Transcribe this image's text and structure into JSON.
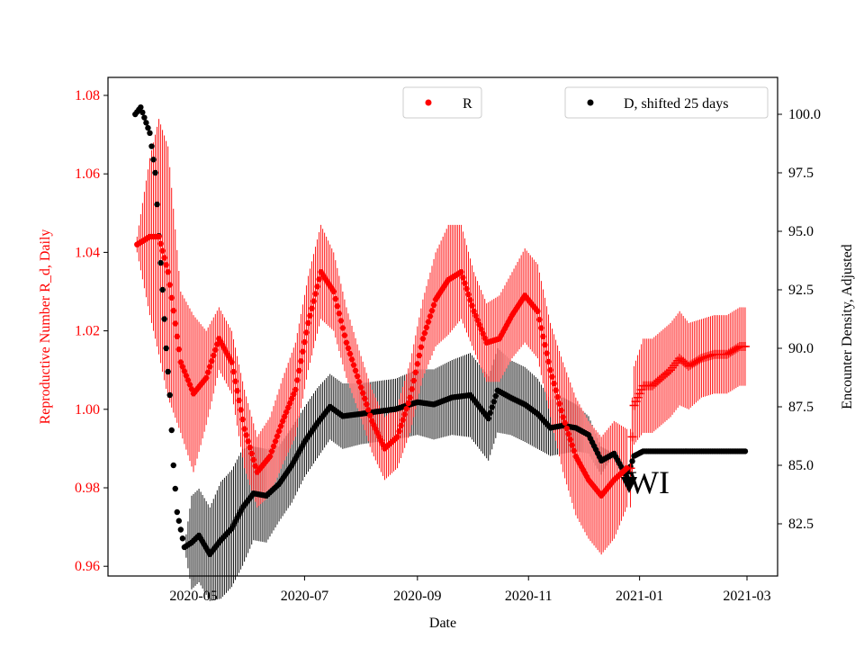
{
  "chart_data": {
    "type": "scatter",
    "xlabel": "Date",
    "ylabel_left": "Reproductive Number R_d, Daily",
    "ylabel_right": "Encounter Density, Adjusted",
    "ylim_left": [
      0.957,
      1.085
    ],
    "ylim_right": [
      80.8,
      101.5
    ],
    "xlim": [
      "2020-03-17",
      "2021-03-16"
    ],
    "x_ticks": [
      "2020-05",
      "2020-07",
      "2020-09",
      "2020-11",
      "2021-01",
      "2021-03"
    ],
    "y_ticks_left": [
      "0.96",
      "0.98",
      "1.00",
      "1.02",
      "1.04",
      "1.06",
      "1.08"
    ],
    "y_ticks_right": [
      "82.5",
      "85.0",
      "87.5",
      "90.0",
      "92.5",
      "95.0",
      "97.5",
      "100.0"
    ],
    "colors": {
      "R": "#ff0000",
      "D": "#000000"
    },
    "legend": [
      {
        "label": "R",
        "placement": "top-center"
      },
      {
        "label": "D, shifted 25 days",
        "placement": "top-right"
      }
    ],
    "annotation": {
      "text": "WI",
      "date": "2020-12-26"
    },
    "series_R": {
      "name": "R",
      "dates": [
        "2020-03-31",
        "2020-04-07",
        "2020-04-12",
        "2020-04-17",
        "2020-04-24",
        "2020-05-01",
        "2020-05-08",
        "2020-05-15",
        "2020-05-22",
        "2020-05-29",
        "2020-06-05",
        "2020-06-12",
        "2020-06-19",
        "2020-06-26",
        "2020-07-03",
        "2020-07-10",
        "2020-07-17",
        "2020-07-24",
        "2020-07-31",
        "2020-08-07",
        "2020-08-14",
        "2020-08-21",
        "2020-08-28",
        "2020-09-04",
        "2020-09-11",
        "2020-09-18",
        "2020-09-25",
        "2020-10-02",
        "2020-10-09",
        "2020-10-16",
        "2020-10-23",
        "2020-10-30",
        "2020-11-06",
        "2020-11-13",
        "2020-11-20",
        "2020-11-27",
        "2020-12-04",
        "2020-12-11",
        "2020-12-18",
        "2020-12-25"
      ],
      "values": [
        1.042,
        1.044,
        1.044,
        1.035,
        1.012,
        1.004,
        1.008,
        1.018,
        1.012,
        0.995,
        0.984,
        0.988,
        0.997,
        1.005,
        1.022,
        1.035,
        1.03,
        1.017,
        1.007,
        0.997,
        0.99,
        0.993,
        1.003,
        1.018,
        1.028,
        1.033,
        1.035,
        1.025,
        1.017,
        1.018,
        1.024,
        1.029,
        1.025,
        1.01,
        0.998,
        0.988,
        0.982,
        0.978,
        0.982,
        0.985
      ],
      "err": [
        0.002,
        0.02,
        0.03,
        0.032,
        0.018,
        0.02,
        0.012,
        0.008,
        0.008,
        0.01,
        0.009,
        0.01,
        0.011,
        0.012,
        0.012,
        0.012,
        0.01,
        0.009,
        0.008,
        0.008,
        0.008,
        0.008,
        0.009,
        0.01,
        0.012,
        0.014,
        0.012,
        0.01,
        0.01,
        0.011,
        0.011,
        0.012,
        0.012,
        0.012,
        0.014,
        0.015,
        0.015,
        0.015,
        0.015,
        0.01
      ]
    },
    "series_R_plus": {
      "dates": [
        "2020-12-27",
        "2020-12-29",
        "2021-01-03",
        "2021-01-08",
        "2021-01-13",
        "2021-01-18",
        "2021-01-23",
        "2021-01-28",
        "2021-02-04",
        "2021-02-11",
        "2021-02-18",
        "2021-02-25",
        "2021-02-28"
      ],
      "values": [
        0.985,
        1.001,
        1.006,
        1.006,
        1.008,
        1.01,
        1.013,
        1.011,
        1.013,
        1.014,
        1.014,
        1.016,
        1.016
      ],
      "err": [
        0.01,
        0.01,
        0.012,
        0.012,
        0.012,
        0.012,
        0.012,
        0.011,
        0.01,
        0.01,
        0.01,
        0.01,
        0.01
      ]
    },
    "series_D": {
      "name": "D, shifted 25 days",
      "dates": [
        "2020-03-30",
        "2020-04-02",
        "2020-04-07",
        "2020-04-10",
        "2020-04-12",
        "2020-04-14",
        "2020-04-16",
        "2020-04-18",
        "2020-04-20",
        "2020-04-22",
        "2020-04-26",
        "2020-04-30",
        "2020-05-04",
        "2020-05-10",
        "2020-05-16",
        "2020-05-22",
        "2020-05-28",
        "2020-06-03",
        "2020-06-10",
        "2020-06-17",
        "2020-06-24",
        "2020-07-01",
        "2020-07-08",
        "2020-07-15",
        "2020-07-22",
        "2020-08-01",
        "2020-08-10",
        "2020-08-20",
        "2020-09-01",
        "2020-09-10",
        "2020-09-20",
        "2020-09-30",
        "2020-10-05",
        "2020-10-10",
        "2020-10-15",
        "2020-10-22",
        "2020-10-30",
        "2020-11-06",
        "2020-11-13",
        "2020-11-20",
        "2020-11-27",
        "2020-12-04",
        "2020-12-11",
        "2020-12-18",
        "2020-12-25",
        "2020-12-29",
        "2021-01-03",
        "2021-01-20",
        "2021-02-10",
        "2021-02-28"
      ],
      "values": [
        100.0,
        100.3,
        99.2,
        97.5,
        94.8,
        92.5,
        90.0,
        88.0,
        85.0,
        83.0,
        81.5,
        81.7,
        82.0,
        81.2,
        81.8,
        82.3,
        83.2,
        83.8,
        83.7,
        84.2,
        85.0,
        86.0,
        86.8,
        87.5,
        87.1,
        87.2,
        87.3,
        87.4,
        87.7,
        87.6,
        87.9,
        88.0,
        87.5,
        87.0,
        88.2,
        87.9,
        87.6,
        87.2,
        86.6,
        86.7,
        86.6,
        86.3,
        85.2,
        85.5,
        84.5,
        85.4,
        85.6,
        85.6,
        85.6,
        85.6
      ],
      "err": [
        0,
        0,
        0,
        0,
        0,
        0,
        0,
        0,
        0,
        0,
        0,
        2.0,
        2.0,
        2.0,
        2.5,
        2.5,
        2.5,
        2.0,
        2.0,
        1.6,
        1.6,
        1.5,
        1.5,
        1.4,
        1.4,
        1.3,
        1.3,
        1.3,
        1.4,
        1.5,
        1.6,
        1.8,
        1.8,
        1.8,
        1.8,
        1.6,
        1.6,
        1.5,
        1.2,
        1.2,
        1.0,
        0.8,
        0.6,
        0,
        0,
        0,
        0,
        0,
        0,
        0
      ]
    }
  }
}
